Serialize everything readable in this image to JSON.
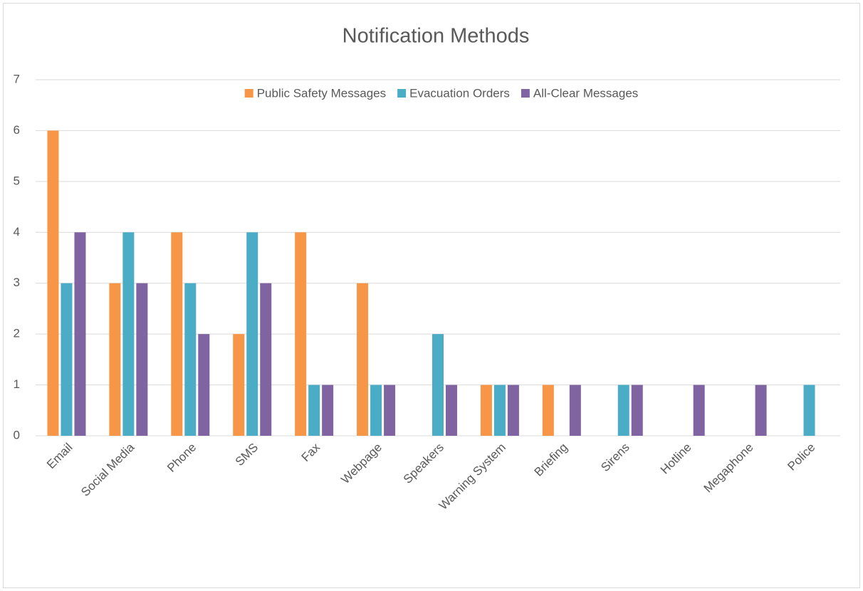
{
  "chart_data": {
    "type": "bar",
    "title": "Notification Methods",
    "categories": [
      "Email",
      "Social Media",
      "Phone",
      "SMS",
      "Fax",
      "Webpage",
      "Speakers",
      "Warning System",
      "Briefing",
      "Sirens",
      "Hotline",
      "Megaphone",
      "Police"
    ],
    "series": [
      {
        "name": "Public Safety Messages",
        "color": "#f79646",
        "values": [
          6,
          3,
          4,
          2,
          4,
          3,
          0,
          1,
          1,
          0,
          0,
          0,
          0
        ]
      },
      {
        "name": "Evacuation Orders",
        "color": "#4bacc6",
        "values": [
          3,
          4,
          3,
          4,
          1,
          1,
          2,
          1,
          0,
          1,
          0,
          0,
          1
        ]
      },
      {
        "name": "All-Clear Messages",
        "color": "#8064a2",
        "values": [
          4,
          3,
          2,
          3,
          1,
          1,
          1,
          1,
          1,
          1,
          1,
          1,
          0
        ]
      }
    ],
    "ylim": [
      0,
      7
    ],
    "yticks": [
      0,
      1,
      2,
      3,
      4,
      5,
      6,
      7
    ],
    "grid": true,
    "legend": "top"
  }
}
